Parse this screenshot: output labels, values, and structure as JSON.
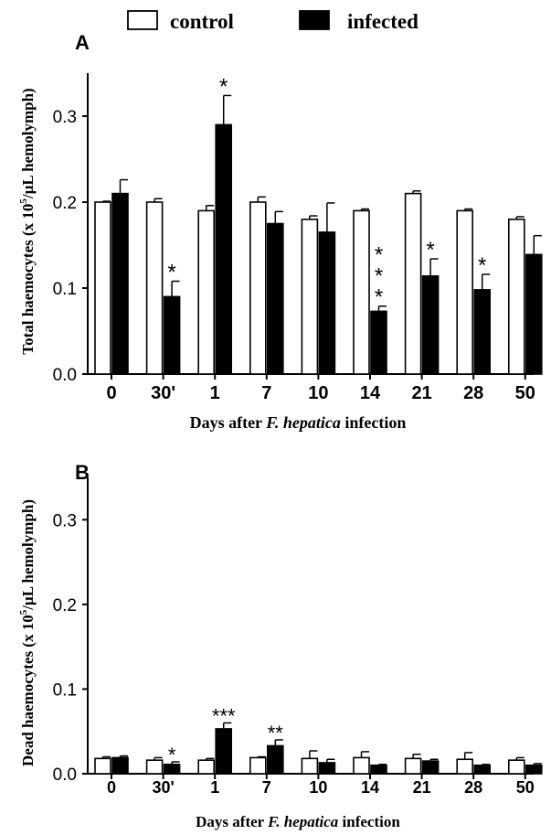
{
  "legend": {
    "items": [
      {
        "label": "control",
        "style": "open"
      },
      {
        "label": "infected",
        "style": "filled"
      }
    ]
  },
  "colors": {
    "control_fill": "#ffffff",
    "infected_fill": "#000000",
    "stroke": "#000000"
  },
  "chart_data": [
    {
      "type": "bar",
      "panel_label": "A",
      "categories": [
        "0",
        "30'",
        "1",
        "7",
        "10",
        "14",
        "21",
        "28",
        "50"
      ],
      "xlabel_prefix": "Days after",
      "xlabel_italic": "F. hepatica",
      "xlabel_suffix": "infection",
      "ylabel_prefix": "Total haemocytes (x 10",
      "ylabel_sup": "5",
      "ylabel_suffix": "/µL hemolymph)",
      "ylim": [
        0,
        0.35
      ],
      "yticks": [
        0.0,
        0.1,
        0.2,
        0.3
      ],
      "ytick_labels": [
        "0.0",
        "0.1",
        "0.2",
        "0.3"
      ],
      "series": [
        {
          "name": "control",
          "values": [
            0.2,
            0.2,
            0.19,
            0.2,
            0.18,
            0.19,
            0.21,
            0.19,
            0.18
          ],
          "errors": [
            0.001,
            0.004,
            0.006,
            0.006,
            0.004,
            0.002,
            0.003,
            0.002,
            0.003
          ]
        },
        {
          "name": "infected",
          "values": [
            0.21,
            0.09,
            0.29,
            0.175,
            0.165,
            0.073,
            0.114,
            0.098,
            0.139
          ],
          "errors": [
            0.016,
            0.018,
            0.034,
            0.014,
            0.034,
            0.006,
            0.02,
            0.018,
            0.022
          ]
        }
      ],
      "annotations": [
        {
          "category_index": 1,
          "series": "infected",
          "text": "*",
          "stacked": false
        },
        {
          "category_index": 2,
          "series": "infected",
          "text": "*",
          "stacked": false
        },
        {
          "category_index": 5,
          "series": "infected",
          "text": "***",
          "stacked": true
        },
        {
          "category_index": 6,
          "series": "infected",
          "text": "*",
          "stacked": false
        },
        {
          "category_index": 7,
          "series": "infected",
          "text": "*",
          "stacked": false
        }
      ]
    },
    {
      "type": "bar",
      "panel_label": "B",
      "categories": [
        "0",
        "30'",
        "1",
        "7",
        "10",
        "14",
        "21",
        "28",
        "50"
      ],
      "xlabel_prefix": "Days after",
      "xlabel_italic": "F. hepatica",
      "xlabel_suffix": "infection",
      "ylabel_prefix": "Dead haemocytes (x 10",
      "ylabel_sup": "5",
      "ylabel_suffix": "/µL hemolymph)",
      "ylim": [
        0,
        0.35
      ],
      "yticks": [
        0.0,
        0.1,
        0.2,
        0.3
      ],
      "ytick_labels": [
        "0.0",
        "0.1",
        "0.2",
        "0.3"
      ],
      "series": [
        {
          "name": "control",
          "values": [
            0.018,
            0.016,
            0.016,
            0.019,
            0.018,
            0.019,
            0.018,
            0.017,
            0.016
          ],
          "errors": [
            0.002,
            0.003,
            0.002,
            0.001,
            0.009,
            0.007,
            0.005,
            0.008,
            0.003
          ]
        },
        {
          "name": "infected",
          "values": [
            0.019,
            0.011,
            0.053,
            0.033,
            0.013,
            0.01,
            0.015,
            0.01,
            0.01
          ],
          "errors": [
            0.002,
            0.003,
            0.007,
            0.007,
            0.004,
            0.001,
            0.002,
            0.001,
            0.002
          ]
        }
      ],
      "annotations": [
        {
          "category_index": 1,
          "series": "infected",
          "text": "*",
          "stacked": false
        },
        {
          "category_index": 2,
          "series": "infected",
          "text": "***",
          "stacked": false
        },
        {
          "category_index": 3,
          "series": "infected",
          "text": "**",
          "stacked": false
        }
      ]
    }
  ]
}
